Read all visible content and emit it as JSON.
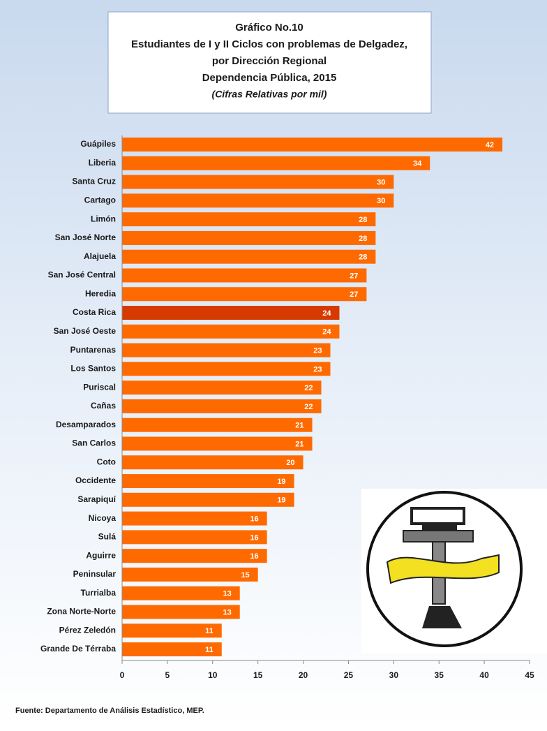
{
  "chart_data": {
    "type": "barh",
    "title": [
      "Gráfico No.10",
      "Estudiantes de I y II Ciclos con problemas de Delgadez,",
      "por Dirección Regional",
      "Dependencia Pública, 2015"
    ],
    "subtitle": "(Cifras Relativas por mil)",
    "categories": [
      "Guápiles",
      "Liberia",
      "Santa Cruz",
      "Cartago",
      "Limón",
      "San José Norte",
      "Alajuela",
      "San José Central",
      "Heredia",
      "Costa Rica",
      "San José Oeste",
      "Puntarenas",
      "Los Santos",
      "Puriscal",
      "Cañas",
      "Desamparados",
      "San Carlos",
      "Coto",
      "Occidente",
      "Sarapiquí",
      "Nicoya",
      "Sulá",
      "Aguirre",
      "Peninsular",
      "Turrialba",
      "Zona Norte-Norte",
      "Pérez Zeledón",
      "Grande De Térraba"
    ],
    "values": [
      42,
      34,
      30,
      30,
      28,
      28,
      28,
      27,
      27,
      24,
      24,
      23,
      23,
      22,
      22,
      21,
      21,
      20,
      19,
      19,
      16,
      16,
      16,
      15,
      13,
      13,
      11,
      11
    ],
    "colors": [
      "#ff6a00",
      "#ff6a00",
      "#ff6a00",
      "#ff6a00",
      "#ff6a00",
      "#ff6a00",
      "#ff6a00",
      "#ff6a00",
      "#ff6a00",
      "#d63a00",
      "#ff6a00",
      "#ff6a00",
      "#ff6a00",
      "#ff6a00",
      "#ff6a00",
      "#ff6a00",
      "#ff6a00",
      "#ff6a00",
      "#ff6a00",
      "#ff6a00",
      "#ff6a00",
      "#ff6a00",
      "#ff6a00",
      "#ff6a00",
      "#ff6a00",
      "#ff6a00",
      "#ff6a00",
      "#ff6a00"
    ],
    "xlim": [
      0,
      45
    ],
    "xticks": [
      0,
      5,
      10,
      15,
      20,
      25,
      30,
      35,
      40,
      45
    ],
    "source": "Fuente: Departamento de Análisis Estadístico, MEP."
  }
}
